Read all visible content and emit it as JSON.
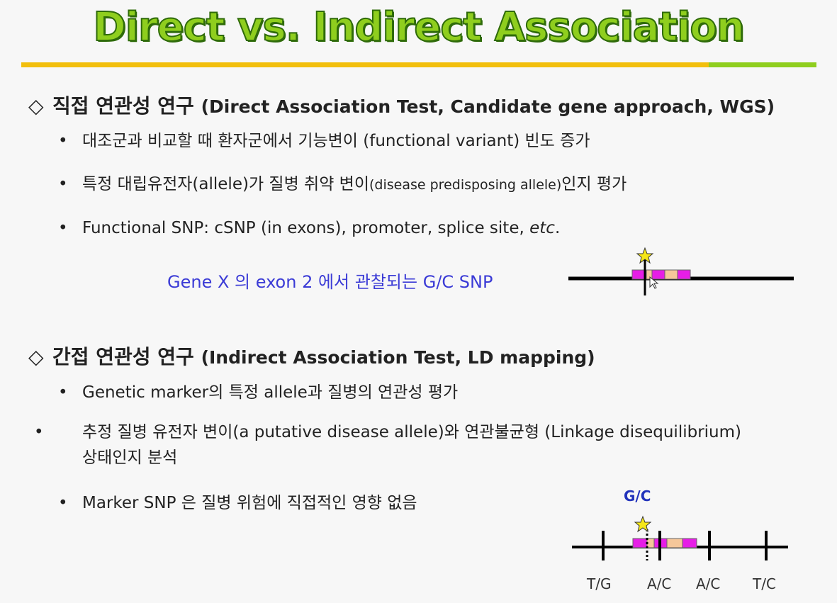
{
  "title": "Direct vs. Indirect Association",
  "direct": {
    "heading": "직접 연관성 연구",
    "heading_sub": "(Direct Association Test, Candidate gene approach, WGS)",
    "bullets": {
      "b1": "대조군과 비교할 때 환자군에서  기능변이 (functional variant)  빈도 증가",
      "b2_a": "특정 대립유전자(allele)가 질병 취약 변이",
      "b2_small": "(disease predisposing allele)",
      "b2_b": "인지 평가",
      "b3_a": "Functional SNP: cSNP (in exons), promoter, splice site, ",
      "b3_etc": "etc",
      "b3_b": "."
    },
    "diagram_caption": "Gene X 의 exon 2 에서 관찰되는 G/C SNP"
  },
  "indirect": {
    "heading": "간접 연관성 연구",
    "heading_sub": "(Indirect Association Test, LD mapping)",
    "bullets": {
      "b1": "Genetic marker의 특정 allele과 질병의 연관성 평가",
      "b2": "추정 질병 유전자 변이(a putative disease allele)와 연관불균형 (Linkage disequilibrium) 상태인지 분석",
      "b3": "Marker SNP 은 질병 위험에 직접적인 영향 없음"
    },
    "snp_label": "G/C",
    "marker_labels": [
      "T/G",
      "A/C",
      "A/C",
      "T/C"
    ]
  },
  "colors": {
    "title_fill": "#8fce1e",
    "title_outline": "#2f6b0a",
    "rule_yellow": "#f2bf0d",
    "rule_green": "#8fce1e",
    "exon_magenta": "#e61ee6",
    "exon_peach": "#f5c79a",
    "star": "#f5e617",
    "caption_blue": "#3b3bd6"
  },
  "icons": [
    "diamond-bullet-icon",
    "bullet-dot-icon",
    "star-icon"
  ]
}
